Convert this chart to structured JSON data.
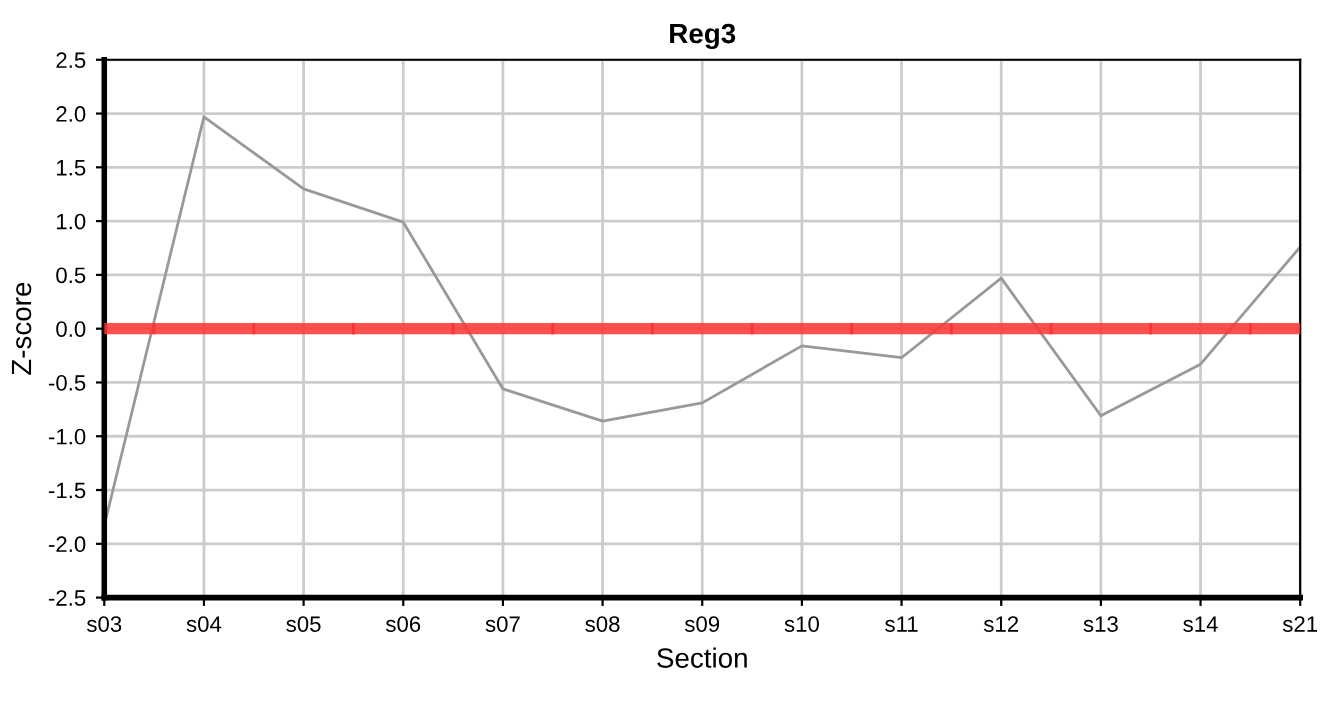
{
  "chart_data": {
    "type": "line",
    "title": "Reg3",
    "xlabel": "Section",
    "ylabel": "Z-score",
    "categories": [
      "s03",
      "s04",
      "s05",
      "s06",
      "s07",
      "s08",
      "s09",
      "s10",
      "s11",
      "s12",
      "s13",
      "s14",
      "s21"
    ],
    "series": [
      {
        "color": "#999999",
        "values": [
          -1.83,
          1.97,
          1.3,
          0.99,
          -0.56,
          -0.86,
          -0.69,
          -0.16,
          -0.27,
          0.47,
          -0.81,
          -0.33,
          0.76
        ]
      }
    ],
    "ylim": [
      -2.5,
      2.5
    ],
    "yticks": [
      {
        "value": 2.5,
        "label": "2.5"
      },
      {
        "value": 2,
        "label": "2.0"
      },
      {
        "value": 1.5,
        "label": "1.5"
      },
      {
        "value": 1,
        "label": "1.0"
      },
      {
        "value": 0.5,
        "label": "0.5"
      },
      {
        "value": 0,
        "label": "0.0"
      },
      {
        "value": -0.5,
        "label": "-0.5"
      },
      {
        "value": -1,
        "label": "-1.0"
      },
      {
        "value": -1.5,
        "label": "-1.5"
      },
      {
        "value": -2,
        "label": "-2.0"
      },
      {
        "value": -2.5,
        "label": "-2.5"
      }
    ],
    "ref_lines": [
      {
        "axis": "y",
        "value": 0,
        "color": "#ff3333"
      }
    ],
    "grid": true,
    "legend": false,
    "marker": "none",
    "line_style": "solid"
  }
}
